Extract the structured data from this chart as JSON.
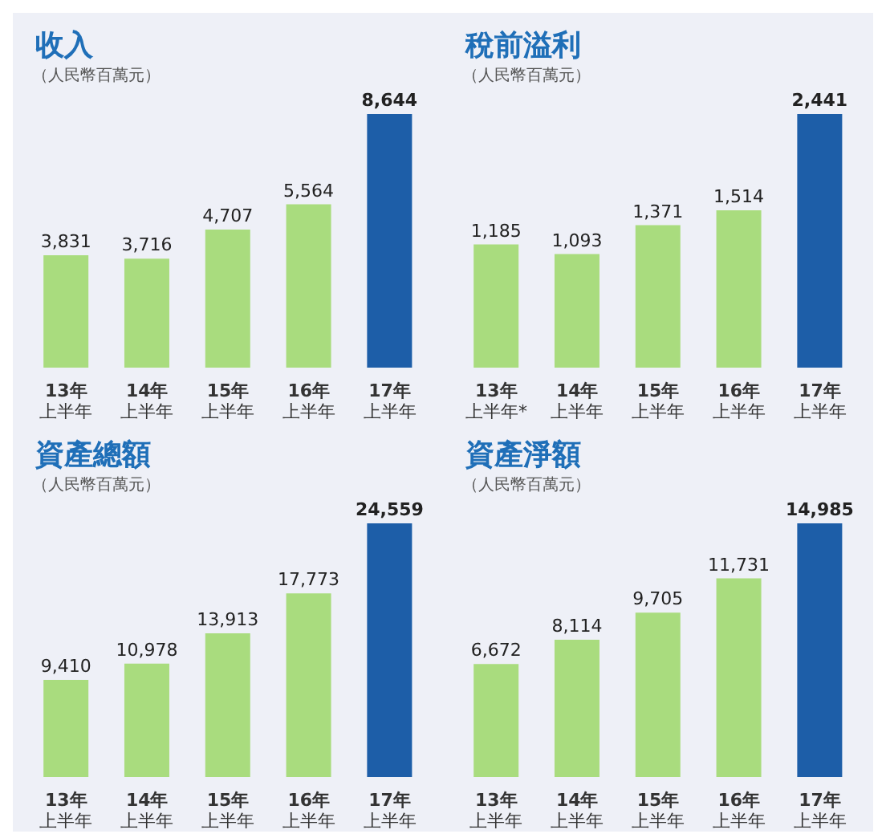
{
  "chart_data": [
    {
      "type": "bar",
      "title": "收入",
      "subtitle": "（人民幣百萬元）",
      "categories": [
        "13年上半年",
        "14年上半年",
        "15年上半年",
        "16年上半年",
        "17年上半年"
      ],
      "values": [
        3831,
        3716,
        4707,
        5564,
        8644
      ],
      "colors": [
        "#a9dc7e",
        "#a9dc7e",
        "#a9dc7e",
        "#a9dc7e",
        "#1d5ea8"
      ],
      "data_labels": true,
      "value_labels": [
        "3,831",
        "3,716",
        "4,707",
        "5,564",
        "8,644"
      ]
    },
    {
      "type": "bar",
      "title": "稅前溢利",
      "subtitle": "（人民幣百萬元）",
      "categories": [
        "13年上半年*",
        "14年上半年",
        "15年上半年",
        "16年上半年",
        "17年上半年"
      ],
      "values": [
        1185,
        1093,
        1371,
        1514,
        2441
      ],
      "colors": [
        "#a9dc7e",
        "#a9dc7e",
        "#a9dc7e",
        "#a9dc7e",
        "#1d5ea8"
      ],
      "data_labels": true,
      "value_labels": [
        "1,185",
        "1,093",
        "1,371",
        "1,514",
        "2,441"
      ]
    },
    {
      "type": "bar",
      "title": "資產總額",
      "subtitle": "（人民幣百萬元）",
      "categories": [
        "13年上半年",
        "14年上半年",
        "15年上半年",
        "16年上半年",
        "17年上半年"
      ],
      "values": [
        9410,
        10978,
        13913,
        17773,
        24559
      ],
      "colors": [
        "#a9dc7e",
        "#a9dc7e",
        "#a9dc7e",
        "#a9dc7e",
        "#1d5ea8"
      ],
      "data_labels": true,
      "value_labels": [
        "9,410",
        "10,978",
        "13,913",
        "17,773",
        "24,559"
      ]
    },
    {
      "type": "bar",
      "title": "資產淨額",
      "subtitle": "（人民幣百萬元）",
      "categories": [
        "13年上半年",
        "14年上半年",
        "15年上半年",
        "16年上半年",
        "17年上半年"
      ],
      "values": [
        6672,
        8114,
        9705,
        11731,
        14985
      ],
      "colors": [
        "#a9dc7e",
        "#a9dc7e",
        "#a9dc7e",
        "#a9dc7e",
        "#1d5ea8"
      ],
      "data_labels": true,
      "value_labels": [
        "6,672",
        "8,114",
        "9,705",
        "11,731",
        "14,985"
      ]
    }
  ]
}
